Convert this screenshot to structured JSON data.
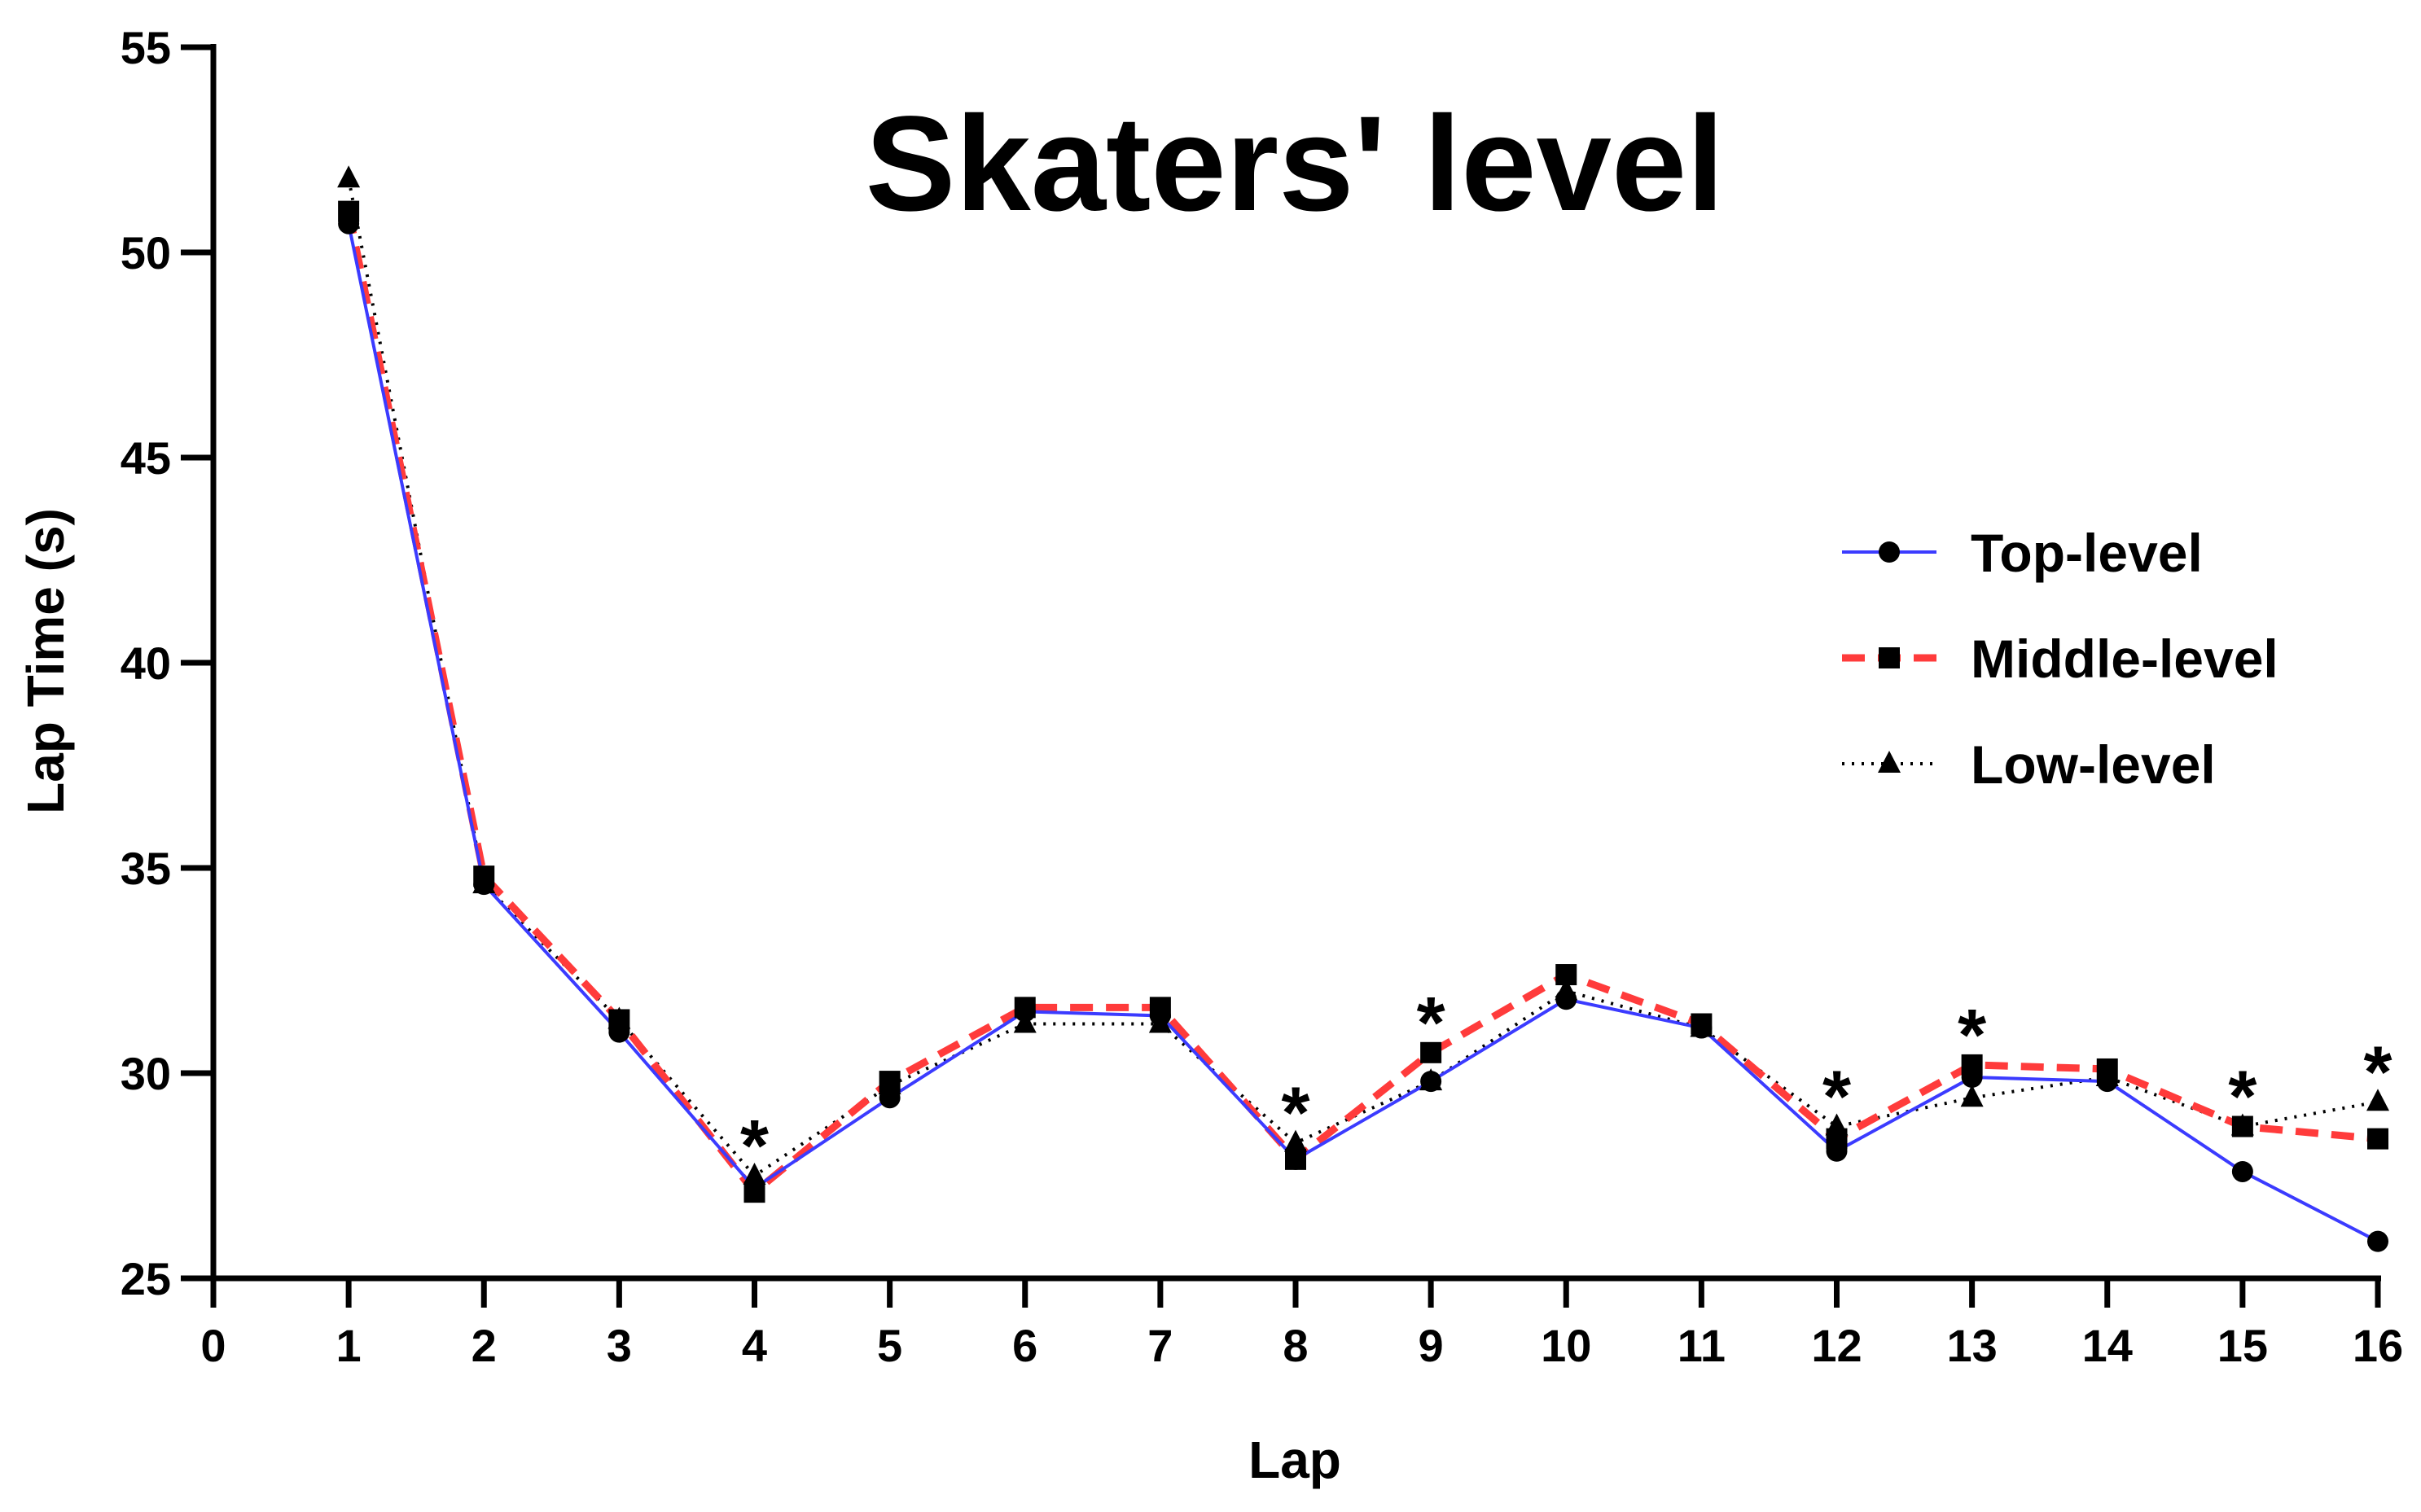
{
  "chart_data": {
    "type": "line",
    "title": "Skaters' level",
    "xlabel": "Lap",
    "ylabel": "Lap Time (s)",
    "xlim": [
      0,
      16
    ],
    "ylim": [
      25,
      55
    ],
    "x_ticks": [
      0,
      1,
      2,
      3,
      4,
      5,
      6,
      7,
      8,
      9,
      10,
      11,
      12,
      13,
      14,
      15,
      16
    ],
    "y_ticks": [
      25,
      30,
      35,
      40,
      45,
      50,
      55
    ],
    "x": [
      1,
      2,
      3,
      4,
      5,
      6,
      7,
      8,
      9,
      10,
      11,
      12,
      13,
      14,
      15,
      16
    ],
    "grid": false,
    "legend_position": "right",
    "series": [
      {
        "name": "Top-level",
        "color": "#3b3bff",
        "line_style": "solid",
        "marker": "circle",
        "values": [
          50.7,
          34.6,
          31.0,
          27.2,
          29.4,
          31.5,
          31.4,
          27.9,
          29.8,
          31.8,
          31.1,
          28.1,
          29.9,
          29.8,
          27.6,
          25.9
        ]
      },
      {
        "name": "Middle-level",
        "color": "#ff3b3b",
        "line_style": "dashed",
        "marker": "square",
        "values": [
          51.0,
          34.8,
          31.3,
          27.1,
          29.8,
          31.6,
          31.6,
          27.9,
          30.5,
          32.4,
          31.2,
          28.4,
          30.2,
          30.1,
          28.7,
          28.4
        ]
      },
      {
        "name": "Low-level",
        "color": "#000000",
        "line_style": "dotted",
        "marker": "triangle",
        "values": [
          51.8,
          34.6,
          31.3,
          27.5,
          29.7,
          31.2,
          31.2,
          28.3,
          29.8,
          32.0,
          31.1,
          28.7,
          29.4,
          29.9,
          28.7,
          29.3
        ]
      }
    ],
    "annotations": [
      {
        "text": "*",
        "x": 4
      },
      {
        "text": "*",
        "x": 8
      },
      {
        "text": "*",
        "x": 9
      },
      {
        "text": "*",
        "x": 12
      },
      {
        "text": "*",
        "x": 13
      },
      {
        "text": "*",
        "x": 15
      },
      {
        "text": "*",
        "x": 16
      }
    ]
  }
}
